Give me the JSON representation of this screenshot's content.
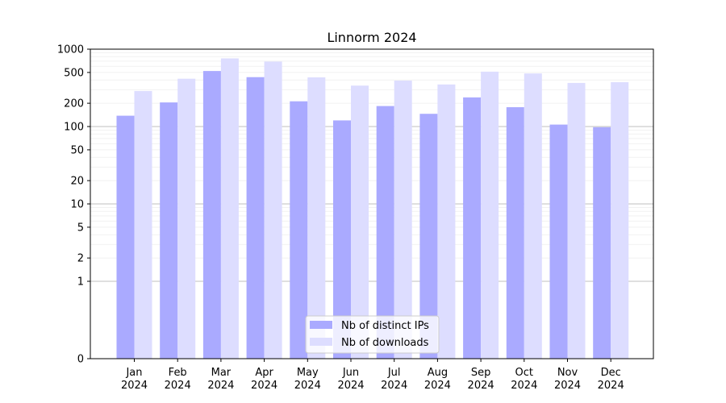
{
  "chart_data": {
    "type": "bar",
    "title": "Linnorm 2024",
    "xlabel": "",
    "ylabel": "",
    "y_scale": "symlog",
    "ylim": [
      0,
      1000
    ],
    "y_ticks": [
      0,
      1,
      2,
      5,
      10,
      20,
      50,
      100,
      200,
      500,
      1000
    ],
    "y_tick_labels": [
      "0",
      "1",
      "2",
      "5",
      "10",
      "20",
      "50",
      "100",
      "200",
      "500",
      "1000"
    ],
    "categories": [
      {
        "month": "Jan",
        "year": "2024"
      },
      {
        "month": "Feb",
        "year": "2024"
      },
      {
        "month": "Mar",
        "year": "2024"
      },
      {
        "month": "Apr",
        "year": "2024"
      },
      {
        "month": "May",
        "year": "2024"
      },
      {
        "month": "Jun",
        "year": "2024"
      },
      {
        "month": "Jul",
        "year": "2024"
      },
      {
        "month": "Aug",
        "year": "2024"
      },
      {
        "month": "Sep",
        "year": "2024"
      },
      {
        "month": "Oct",
        "year": "2024"
      },
      {
        "month": "Nov",
        "year": "2024"
      },
      {
        "month": "Dec",
        "year": "2024"
      }
    ],
    "series": [
      {
        "name": "Nb of distinct IPs",
        "color": "#aaaaff",
        "values": [
          138,
          205,
          522,
          435,
          212,
          120,
          184,
          146,
          238,
          178,
          106,
          98
        ]
      },
      {
        "name": "Nb of downloads",
        "color": "#ddddff",
        "values": [
          288,
          415,
          760,
          692,
          432,
          338,
          392,
          350,
          512,
          485,
          366,
          375
        ]
      }
    ],
    "grid": true,
    "legend_position": "bottom-center"
  }
}
